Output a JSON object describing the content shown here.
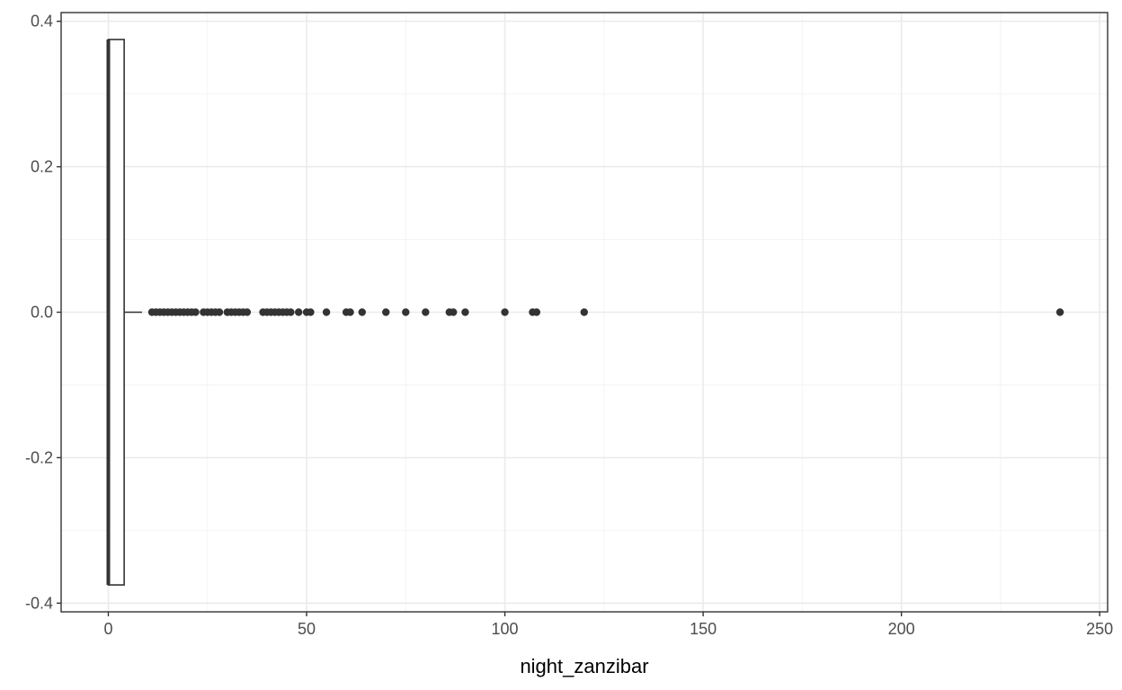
{
  "chart_data": {
    "type": "boxplot",
    "xlabel": "night_zanzibar",
    "ylabel": "",
    "xlim": [
      -11.9,
      252
    ],
    "ylim": [
      -0.412,
      0.412
    ],
    "x_ticks": [
      0,
      50,
      100,
      150,
      200,
      250
    ],
    "x_tick_labels": [
      "0",
      "50",
      "100",
      "150",
      "200",
      "250"
    ],
    "y_ticks": [
      -0.4,
      -0.2,
      0.0,
      0.2,
      0.4
    ],
    "y_tick_labels": [
      "-0.4",
      "-0.2",
      "0.0",
      "0.2",
      "0.4"
    ],
    "grid": true,
    "box": {
      "min": 0,
      "q1": 0,
      "median": 0,
      "q3": 4,
      "whisker_high": 4,
      "y_center": 0.0,
      "half_height": 0.375
    },
    "outliers": [
      11,
      12,
      13,
      14,
      15,
      16,
      17,
      18,
      19,
      20,
      21,
      22,
      24,
      25,
      26,
      27,
      28,
      30,
      31,
      32,
      33,
      34,
      35,
      39,
      40,
      41,
      42,
      43,
      44,
      45,
      46,
      48,
      50,
      51,
      55,
      60,
      61,
      64,
      70,
      75,
      80,
      86,
      87,
      90,
      100,
      107,
      108,
      120,
      240
    ],
    "colors": {
      "panel_border": "#333333",
      "grid_major": "#ebebeb",
      "grid_minor": "#f4f4f4",
      "box": "#333333",
      "points": "#333333"
    }
  }
}
